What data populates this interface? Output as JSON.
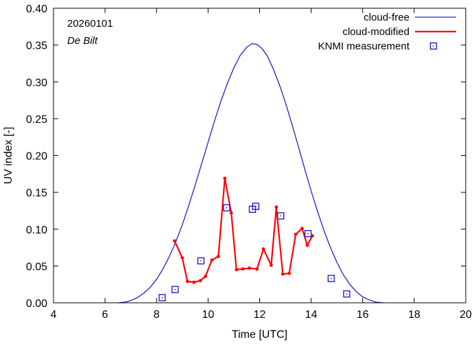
{
  "chart_data": {
    "type": "line",
    "title": "",
    "xlabel": "Time  [UTC]",
    "ylabel": "UV index  [-]",
    "xlim": [
      4,
      20
    ],
    "ylim": [
      0,
      0.4
    ],
    "xticks": [
      4,
      6,
      8,
      10,
      12,
      14,
      16,
      18,
      20
    ],
    "xtick_labels": [
      "4",
      "6",
      "8",
      "10",
      "12",
      "14",
      "16",
      "18",
      "20"
    ],
    "yticks": [
      0,
      0.05,
      0.1,
      0.15,
      0.2,
      0.25,
      0.3,
      0.35,
      0.4
    ],
    "ytick_labels": [
      "0.00",
      "0.05",
      "0.10",
      "0.15",
      "0.20",
      "0.25",
      "0.30",
      "0.35",
      "0.40"
    ],
    "grid": false,
    "annotations": {
      "date": "20260101",
      "station": "De Bilt"
    },
    "legend": {
      "position": "top-right"
    },
    "series": [
      {
        "name": "cloud-free",
        "style": "line",
        "color": "#2020c8",
        "x": [
          6.5,
          6.8,
          7.0,
          7.25,
          7.5,
          7.75,
          8.0,
          8.25,
          8.5,
          8.75,
          9.0,
          9.25,
          9.5,
          9.75,
          10.0,
          10.25,
          10.5,
          10.75,
          11.0,
          11.25,
          11.5,
          11.7,
          11.9,
          12.1,
          12.3,
          12.5,
          12.75,
          13.0,
          13.25,
          13.5,
          13.75,
          14.0,
          14.25,
          14.5,
          14.75,
          15.0,
          15.25,
          15.5,
          15.75,
          16.0,
          16.25,
          16.5,
          16.8
        ],
        "y": [
          0.0,
          0.001,
          0.003,
          0.007,
          0.013,
          0.021,
          0.032,
          0.046,
          0.063,
          0.083,
          0.106,
          0.132,
          0.16,
          0.189,
          0.218,
          0.247,
          0.274,
          0.298,
          0.319,
          0.336,
          0.347,
          0.352,
          0.351,
          0.345,
          0.335,
          0.32,
          0.298,
          0.272,
          0.243,
          0.213,
          0.182,
          0.152,
          0.124,
          0.098,
          0.075,
          0.055,
          0.038,
          0.025,
          0.015,
          0.008,
          0.004,
          0.001,
          0.0
        ]
      },
      {
        "name": "cloud-modified",
        "style": "line-markers",
        "color": "#ff0000",
        "x": [
          8.7,
          9.0,
          9.2,
          9.45,
          9.7,
          9.9,
          10.15,
          10.4,
          10.65,
          10.9,
          11.1,
          11.35,
          11.6,
          11.9,
          12.15,
          12.45,
          12.65,
          12.9,
          13.15,
          13.4,
          13.65,
          13.85,
          14.05
        ],
        "y": [
          0.084,
          0.061,
          0.029,
          0.028,
          0.03,
          0.036,
          0.058,
          0.063,
          0.169,
          0.122,
          0.045,
          0.046,
          0.047,
          0.046,
          0.073,
          0.051,
          0.13,
          0.039,
          0.04,
          0.093,
          0.101,
          0.078,
          0.091
        ]
      },
      {
        "name": "KNMI measurement",
        "style": "markers",
        "color": "#2020c8",
        "x": [
          8.22,
          8.72,
          9.72,
          10.72,
          11.72,
          11.85,
          12.82,
          13.88,
          14.78,
          15.38
        ],
        "y": [
          0.007,
          0.018,
          0.057,
          0.129,
          0.127,
          0.131,
          0.118,
          0.094,
          0.033,
          0.012
        ]
      }
    ]
  }
}
